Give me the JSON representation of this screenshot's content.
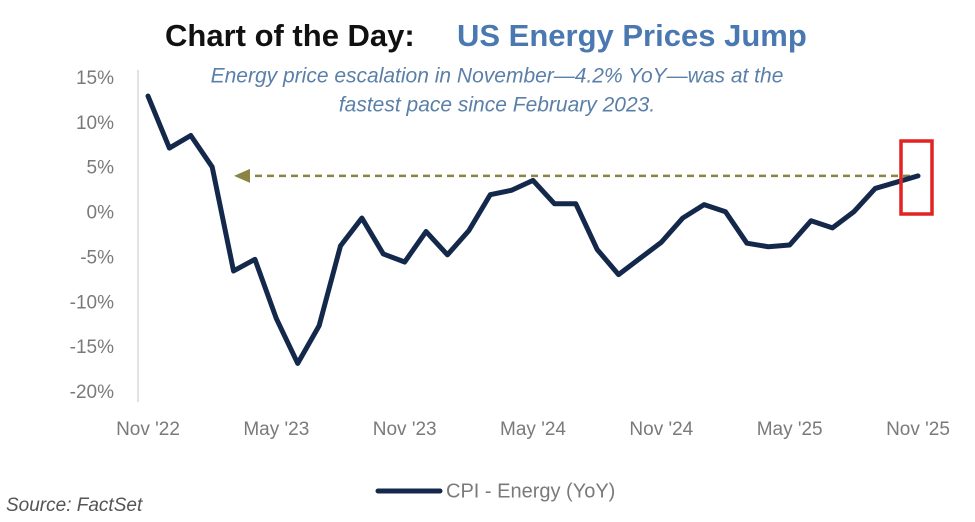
{
  "chart_data": {
    "type": "line",
    "title_prefix": "Chart of the Day:",
    "title": "US Energy Prices Jump",
    "subtitle": [
      "Energy price escalation in November—4.2% YoY—was at the",
      "fastest pace since February 2023."
    ],
    "source": "Source: FactSet",
    "categories": [
      "Nov '22",
      null,
      null,
      null,
      null,
      null,
      "May '23",
      null,
      null,
      null,
      null,
      null,
      "Nov '23",
      null,
      null,
      null,
      null,
      null,
      "May '24",
      null,
      null,
      null,
      null,
      null,
      "Nov '24",
      null,
      null,
      null,
      null,
      null,
      "May '25",
      null,
      null,
      null,
      null,
      null,
      "Nov '25"
    ],
    "series": [
      {
        "name": "CPI - Energy (YoY)",
        "color": "#14284b",
        "values": [
          13.1,
          7.3,
          8.7,
          5.2,
          -6.4,
          -5.1,
          -11.7,
          -16.7,
          -12.5,
          -3.6,
          -0.5,
          -4.5,
          -5.4,
          -2.0,
          -4.6,
          -1.9,
          2.1,
          2.6,
          3.7,
          1.1,
          1.1,
          -4.0,
          -6.8,
          -5.0,
          -3.2,
          -0.5,
          1.0,
          0.2,
          -3.3,
          -3.7,
          -3.5,
          -0.8,
          -1.6,
          0.2,
          2.8,
          3.5,
          4.2
        ]
      }
    ],
    "ylim": [
      -20,
      15
    ],
    "yticks": [
      {
        "value": -20,
        "label": "-20%"
      },
      {
        "value": -15,
        "label": "-15%"
      },
      {
        "value": -10,
        "label": "-10%"
      },
      {
        "value": -5,
        "label": "-5%"
      },
      {
        "value": 0,
        "label": "0%"
      },
      {
        "value": 5,
        "label": "5%"
      },
      {
        "value": 10,
        "label": "10%"
      },
      {
        "value": 15,
        "label": "15%"
      }
    ],
    "grid": false
  }
}
